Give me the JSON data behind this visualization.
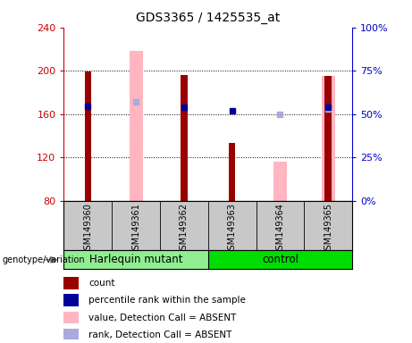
{
  "title": "GDS3365 / 1425535_at",
  "samples": [
    "GSM149360",
    "GSM149361",
    "GSM149362",
    "GSM149363",
    "GSM149364",
    "GSM149365"
  ],
  "ylim_left": [
    80,
    240
  ],
  "ylim_right": [
    0,
    100
  ],
  "yticks_left": [
    80,
    120,
    160,
    200,
    240
  ],
  "yticks_right": [
    0,
    25,
    50,
    75,
    100
  ],
  "red_bars": [
    199,
    0,
    196,
    133,
    0,
    195
  ],
  "pink_bars": [
    0,
    218,
    0,
    0,
    116,
    195
  ],
  "blue_dots_val": [
    167,
    0,
    166,
    163,
    0,
    166
  ],
  "lavender_dots_val": [
    0,
    171,
    0,
    0,
    160,
    165
  ],
  "left_axis_color": "#CC0000",
  "right_axis_color": "#0000CC",
  "harlequin_color": "#90EE90",
  "control_color": "#00DD00",
  "sample_label_bg": "#C8C8C8",
  "legend_items": [
    {
      "label": "count",
      "color": "#990000"
    },
    {
      "label": "percentile rank within the sample",
      "color": "#000099"
    },
    {
      "label": "value, Detection Call = ABSENT",
      "color": "#FFB6C1"
    },
    {
      "label": "rank, Detection Call = ABSENT",
      "color": "#AAAADD"
    }
  ]
}
